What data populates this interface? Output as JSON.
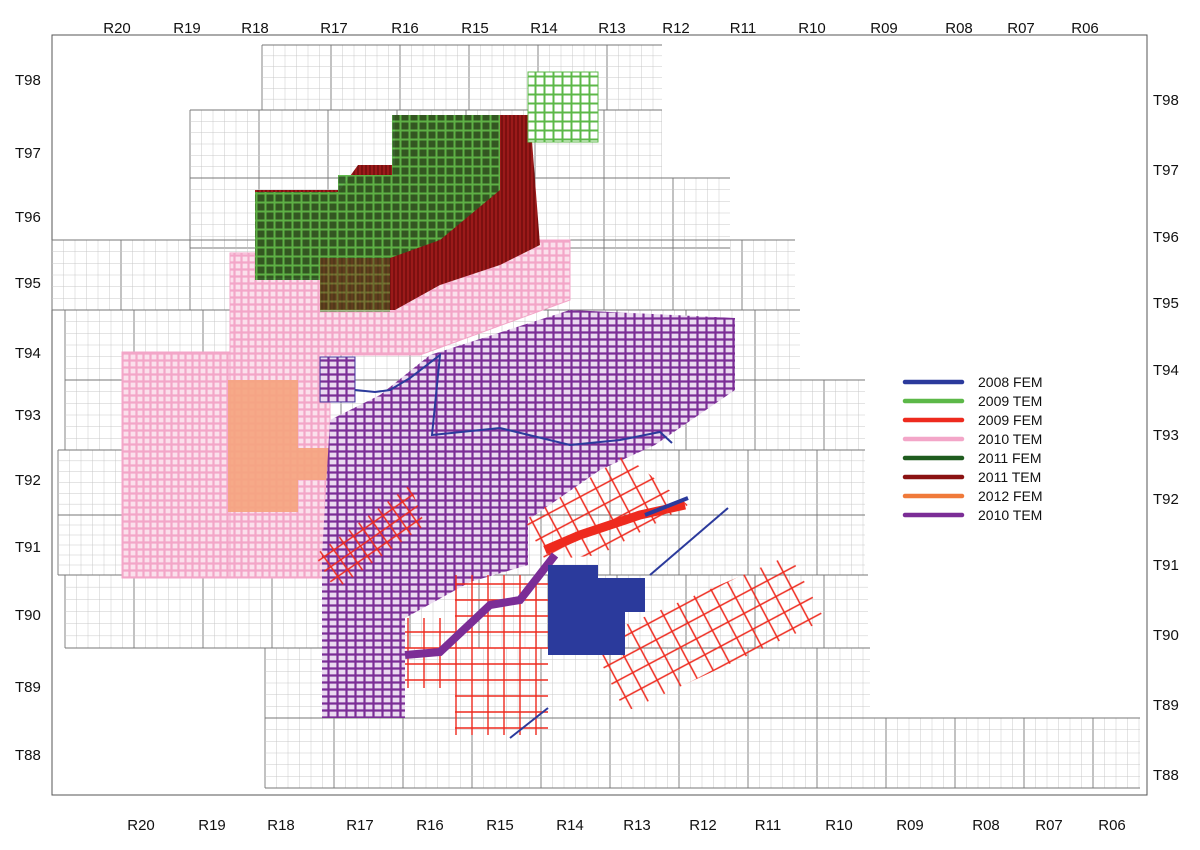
{
  "map": {
    "range_labels_top": [
      "R20",
      "R19",
      "R18",
      "R17",
      "R16",
      "R15",
      "R14",
      "R13",
      "R12",
      "R11",
      "R10",
      "R09",
      "R08",
      "R07",
      "R06"
    ],
    "range_labels_bottom": [
      "R20",
      "R19",
      "R18",
      "R17",
      "R16",
      "R15",
      "R14",
      "R13",
      "R12",
      "R11",
      "R10",
      "R09",
      "R08",
      "R07",
      "R06"
    ],
    "township_labels_left": [
      "T98",
      "T97",
      "T96",
      "T95",
      "T94",
      "T93",
      "T92",
      "T91",
      "T90",
      "T89",
      "T88"
    ],
    "township_labels_right": [
      "T98",
      "T97",
      "T96",
      "T95",
      "T94",
      "T93",
      "T92",
      "T91",
      "T90",
      "T89",
      "T88"
    ]
  },
  "legend": {
    "items": [
      {
        "label": "2008 FEM",
        "color": "#2b3a9c"
      },
      {
        "label": "2009 TEM",
        "color": "#5cb848"
      },
      {
        "label": "2009 FEM",
        "color": "#ee2a1e"
      },
      {
        "label": "2010 TEM",
        "color": "#f3a6c8"
      },
      {
        "label": "2011 FEM",
        "color": "#1f5c1f"
      },
      {
        "label": "2011 TEM",
        "color": "#8b1212"
      },
      {
        "label": "2012 FEM",
        "color": "#f07a3a"
      },
      {
        "label": "2010 TEM",
        "color": "#7b2d96"
      }
    ]
  }
}
